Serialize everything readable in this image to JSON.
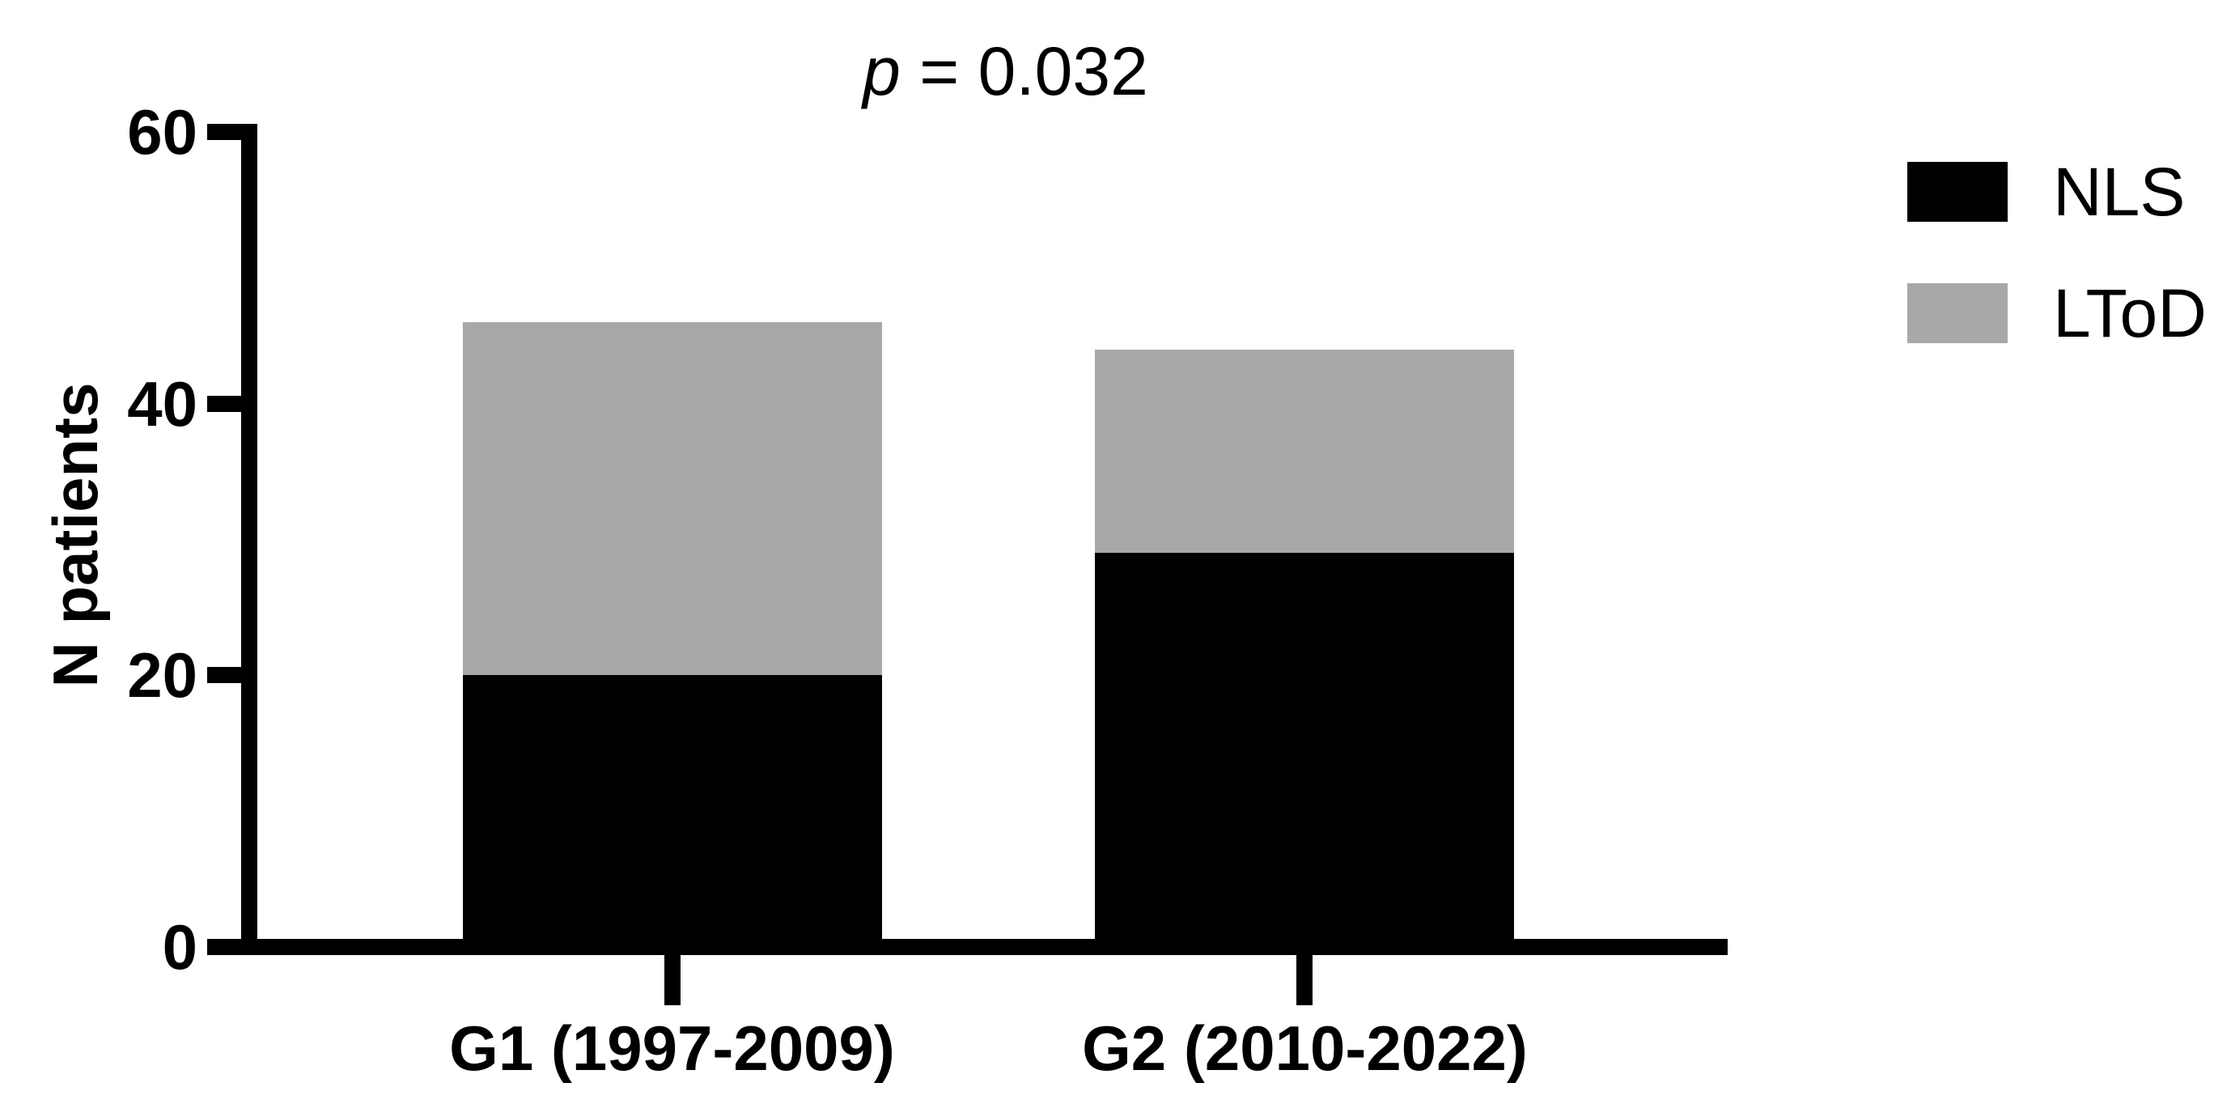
{
  "figure": {
    "title": {
      "stat_symbol": "p",
      "stat_rest": " = 0.032"
    },
    "background_color": "#ffffff",
    "axis_color": "#000000"
  },
  "chart_data": {
    "type": "bar",
    "stacked": true,
    "title": "p = 0.032",
    "annotation": "p = 0.032",
    "categories": [
      "G1 (1997-2009)",
      "G2 (2010-2022)"
    ],
    "series": [
      {
        "name": "NLS",
        "color": "#000000",
        "values": [
          20,
          29
        ]
      },
      {
        "name": "LToD",
        "color": "#a8a8a8",
        "values": [
          26,
          15
        ]
      }
    ],
    "totals": [
      46,
      44
    ],
    "xlabel": "",
    "ylabel": "N patients",
    "ylim": [
      0,
      60
    ],
    "yticks": [
      0,
      20,
      40,
      60
    ],
    "grid": false,
    "legend_position": "top-right",
    "bar_center_fractions": [
      0.286,
      0.714
    ]
  }
}
